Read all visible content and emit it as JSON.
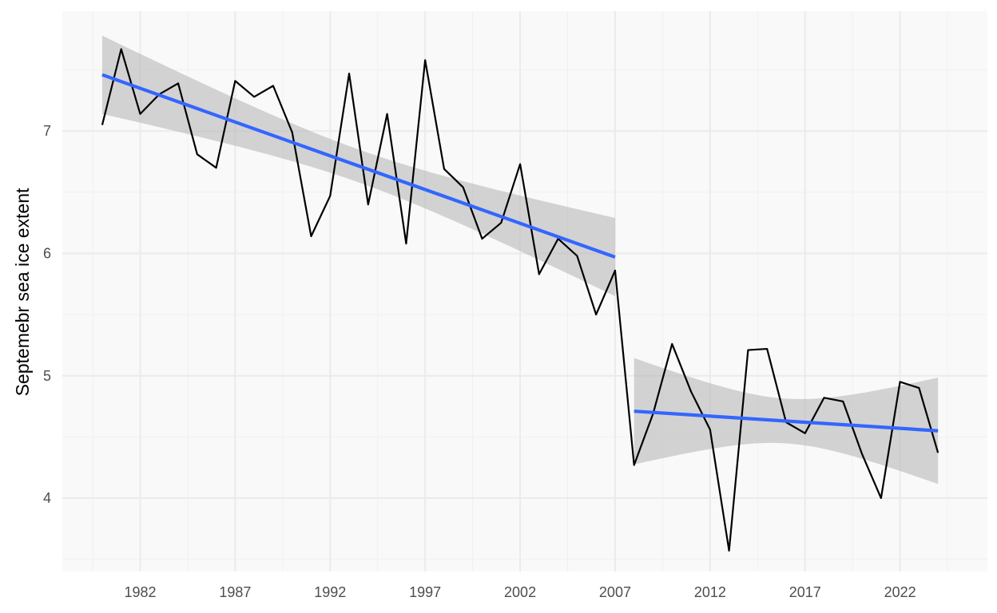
{
  "chart_data": {
    "type": "line",
    "title": "",
    "xlabel": "",
    "ylabel": "Septemebr sea ice extent",
    "xlim": [
      1977.9,
      2026.6
    ],
    "ylim": [
      3.4,
      7.98
    ],
    "x_ticks": [
      1982,
      1987,
      1992,
      1997,
      2002,
      2007,
      2012,
      2017,
      2022
    ],
    "x_tick_labels": [
      "1982",
      "1987",
      "1992",
      "1997",
      "2002",
      "2007",
      "2012",
      "2017",
      "2022"
    ],
    "y_ticks": [
      4,
      5,
      6,
      7
    ],
    "y_tick_labels": [
      "4",
      "5",
      "6",
      "7"
    ],
    "grid": true,
    "legend": "none",
    "series": [
      {
        "x": [
          1980,
          1981,
          1982,
          1983,
          1984,
          1985,
          1986,
          1987,
          1988,
          1989,
          1990,
          1991,
          1992,
          1993,
          1994,
          1995,
          1996,
          1997,
          1998,
          1999,
          2000,
          2001,
          2002,
          2003,
          2004,
          2005,
          2006,
          2007,
          2008,
          2009,
          2010,
          2011,
          2012,
          2013,
          2014,
          2015,
          2016,
          2017,
          2018,
          2019,
          2020,
          2021,
          2022,
          2023,
          2024
        ],
        "values": [
          7.05,
          7.67,
          7.14,
          7.3,
          7.39,
          6.81,
          6.7,
          7.41,
          7.28,
          7.37,
          6.99,
          6.14,
          6.47,
          7.47,
          6.4,
          7.14,
          6.08,
          7.58,
          6.69,
          6.54,
          6.12,
          6.25,
          6.73,
          5.83,
          6.12,
          5.98,
          5.5,
          5.86,
          4.27,
          4.69,
          5.26,
          4.87,
          4.56,
          3.57,
          5.21,
          5.22,
          4.62,
          4.53,
          4.82,
          4.79,
          4.36,
          4.0,
          4.95,
          4.9,
          4.37
        ]
      }
    ],
    "trend_lines": [
      {
        "x": [
          1980,
          2007
        ],
        "fit": [
          7.46,
          5.97
        ],
        "ci_upper": [
          7.78,
          6.29
        ],
        "ci_lower": [
          7.14,
          5.65
        ]
      },
      {
        "x": [
          2008,
          2024
        ],
        "fit": [
          4.71,
          4.55
        ],
        "ci_upper": [
          5.15,
          4.98
        ],
        "ci_lower": [
          4.27,
          4.12
        ]
      }
    ],
    "colors": {
      "trend": "#3366ff",
      "observed": "#000000",
      "ribbon": "#b3b3b3"
    }
  }
}
